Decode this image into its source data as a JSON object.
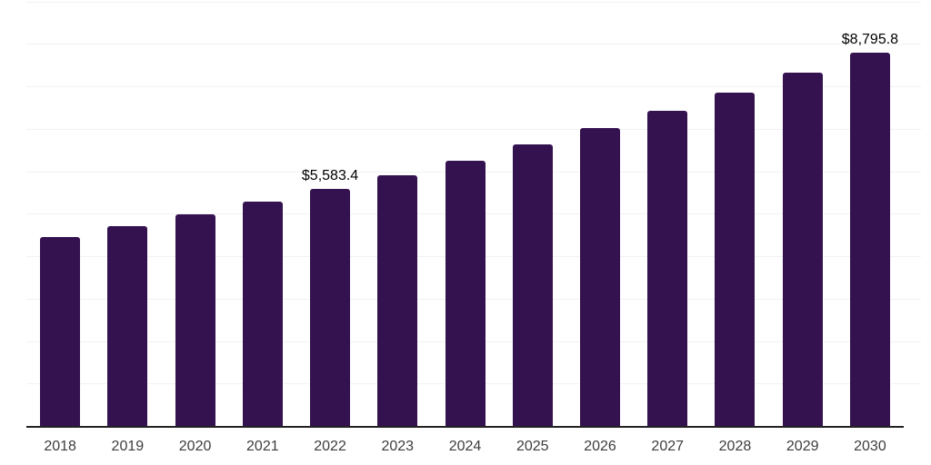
{
  "chart": {
    "background": "#ffffff",
    "bar_color": "#341250",
    "grid_color": "#f2f2f4",
    "axis_color": "#222222",
    "year_label_color": "#3d3d3d",
    "data_label_color": "#000000"
  },
  "chart_data": {
    "type": "bar",
    "title": "",
    "xlabel": "",
    "ylabel": "",
    "ylim": [
      0,
      10000
    ],
    "grid_interval": 1000,
    "grid": "horizontal",
    "legend_position": "none",
    "categories": [
      "2018",
      "2019",
      "2020",
      "2021",
      "2022",
      "2023",
      "2024",
      "2025",
      "2026",
      "2027",
      "2028",
      "2029",
      "2030"
    ],
    "values": [
      4440,
      4710,
      4985,
      5275,
      5583.4,
      5910,
      6250,
      6625,
      7010,
      7420,
      7860,
      8320,
      8795.8
    ],
    "data_labels": [
      {
        "category": "2022",
        "text": "$5,583.4"
      },
      {
        "category": "2030",
        "text": "$8,795.8"
      }
    ]
  }
}
